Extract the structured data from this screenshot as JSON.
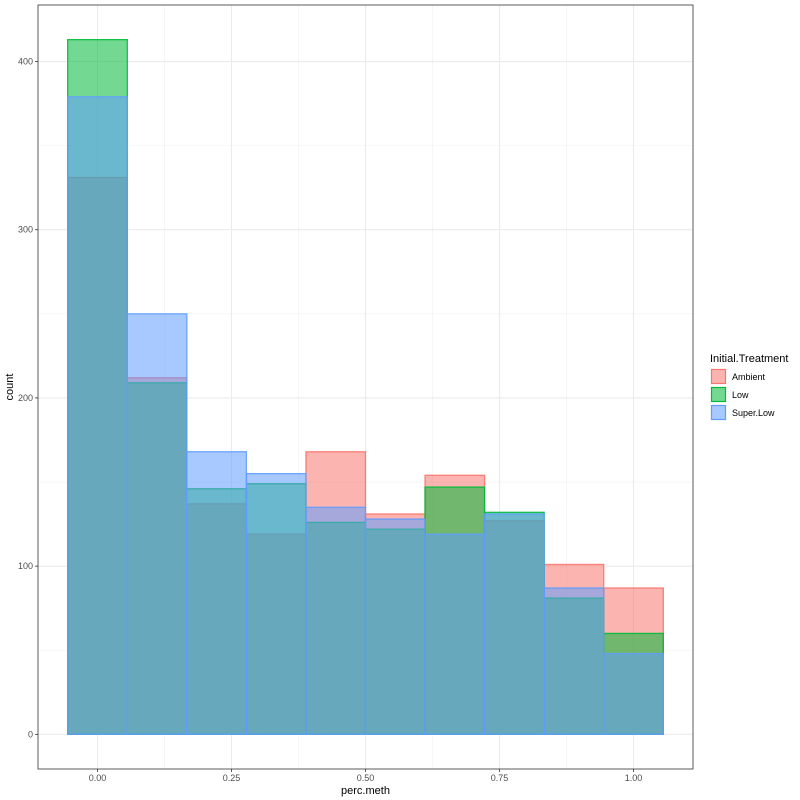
{
  "chart_data": {
    "type": "bar",
    "subtype": "overlapping-histogram",
    "xlabel": "perc.meth",
    "ylabel": "count",
    "x_ticks": [
      {
        "value": 0.0,
        "label": "0.00"
      },
      {
        "value": 0.25,
        "label": "0.25"
      },
      {
        "value": 0.5,
        "label": "0.50"
      },
      {
        "value": 0.75,
        "label": "0.75"
      },
      {
        "value": 1.0,
        "label": "1.00"
      }
    ],
    "y_ticks": [
      {
        "value": 0,
        "label": "0"
      },
      {
        "value": 100,
        "label": "100"
      },
      {
        "value": 200,
        "label": "200"
      },
      {
        "value": 300,
        "label": "300"
      },
      {
        "value": 400,
        "label": "400"
      }
    ],
    "xlim": [
      -0.111,
      1.111
    ],
    "ylim": [
      -20.6,
      433.6
    ],
    "grid": true,
    "bin_edges": [
      -0.0556,
      0.0556,
      0.1667,
      0.2778,
      0.3889,
      0.5,
      0.6111,
      0.7222,
      0.8333,
      0.9444,
      1.0556
    ],
    "legend": {
      "title": "Initial.Treatment",
      "position": "right"
    },
    "series": [
      {
        "name": "Ambient",
        "color": "#F8766D",
        "values": [
          331,
          212,
          137,
          119,
          168,
          131,
          154,
          127,
          101,
          87
        ]
      },
      {
        "name": "Low",
        "color": "#00BA38",
        "values": [
          413,
          209,
          146,
          149,
          126,
          122,
          147,
          132,
          81,
          60
        ]
      },
      {
        "name": "Super.Low",
        "color": "#619CFF",
        "values": [
          379,
          250,
          168,
          155,
          135,
          128,
          119,
          131,
          87,
          48
        ]
      }
    ]
  }
}
